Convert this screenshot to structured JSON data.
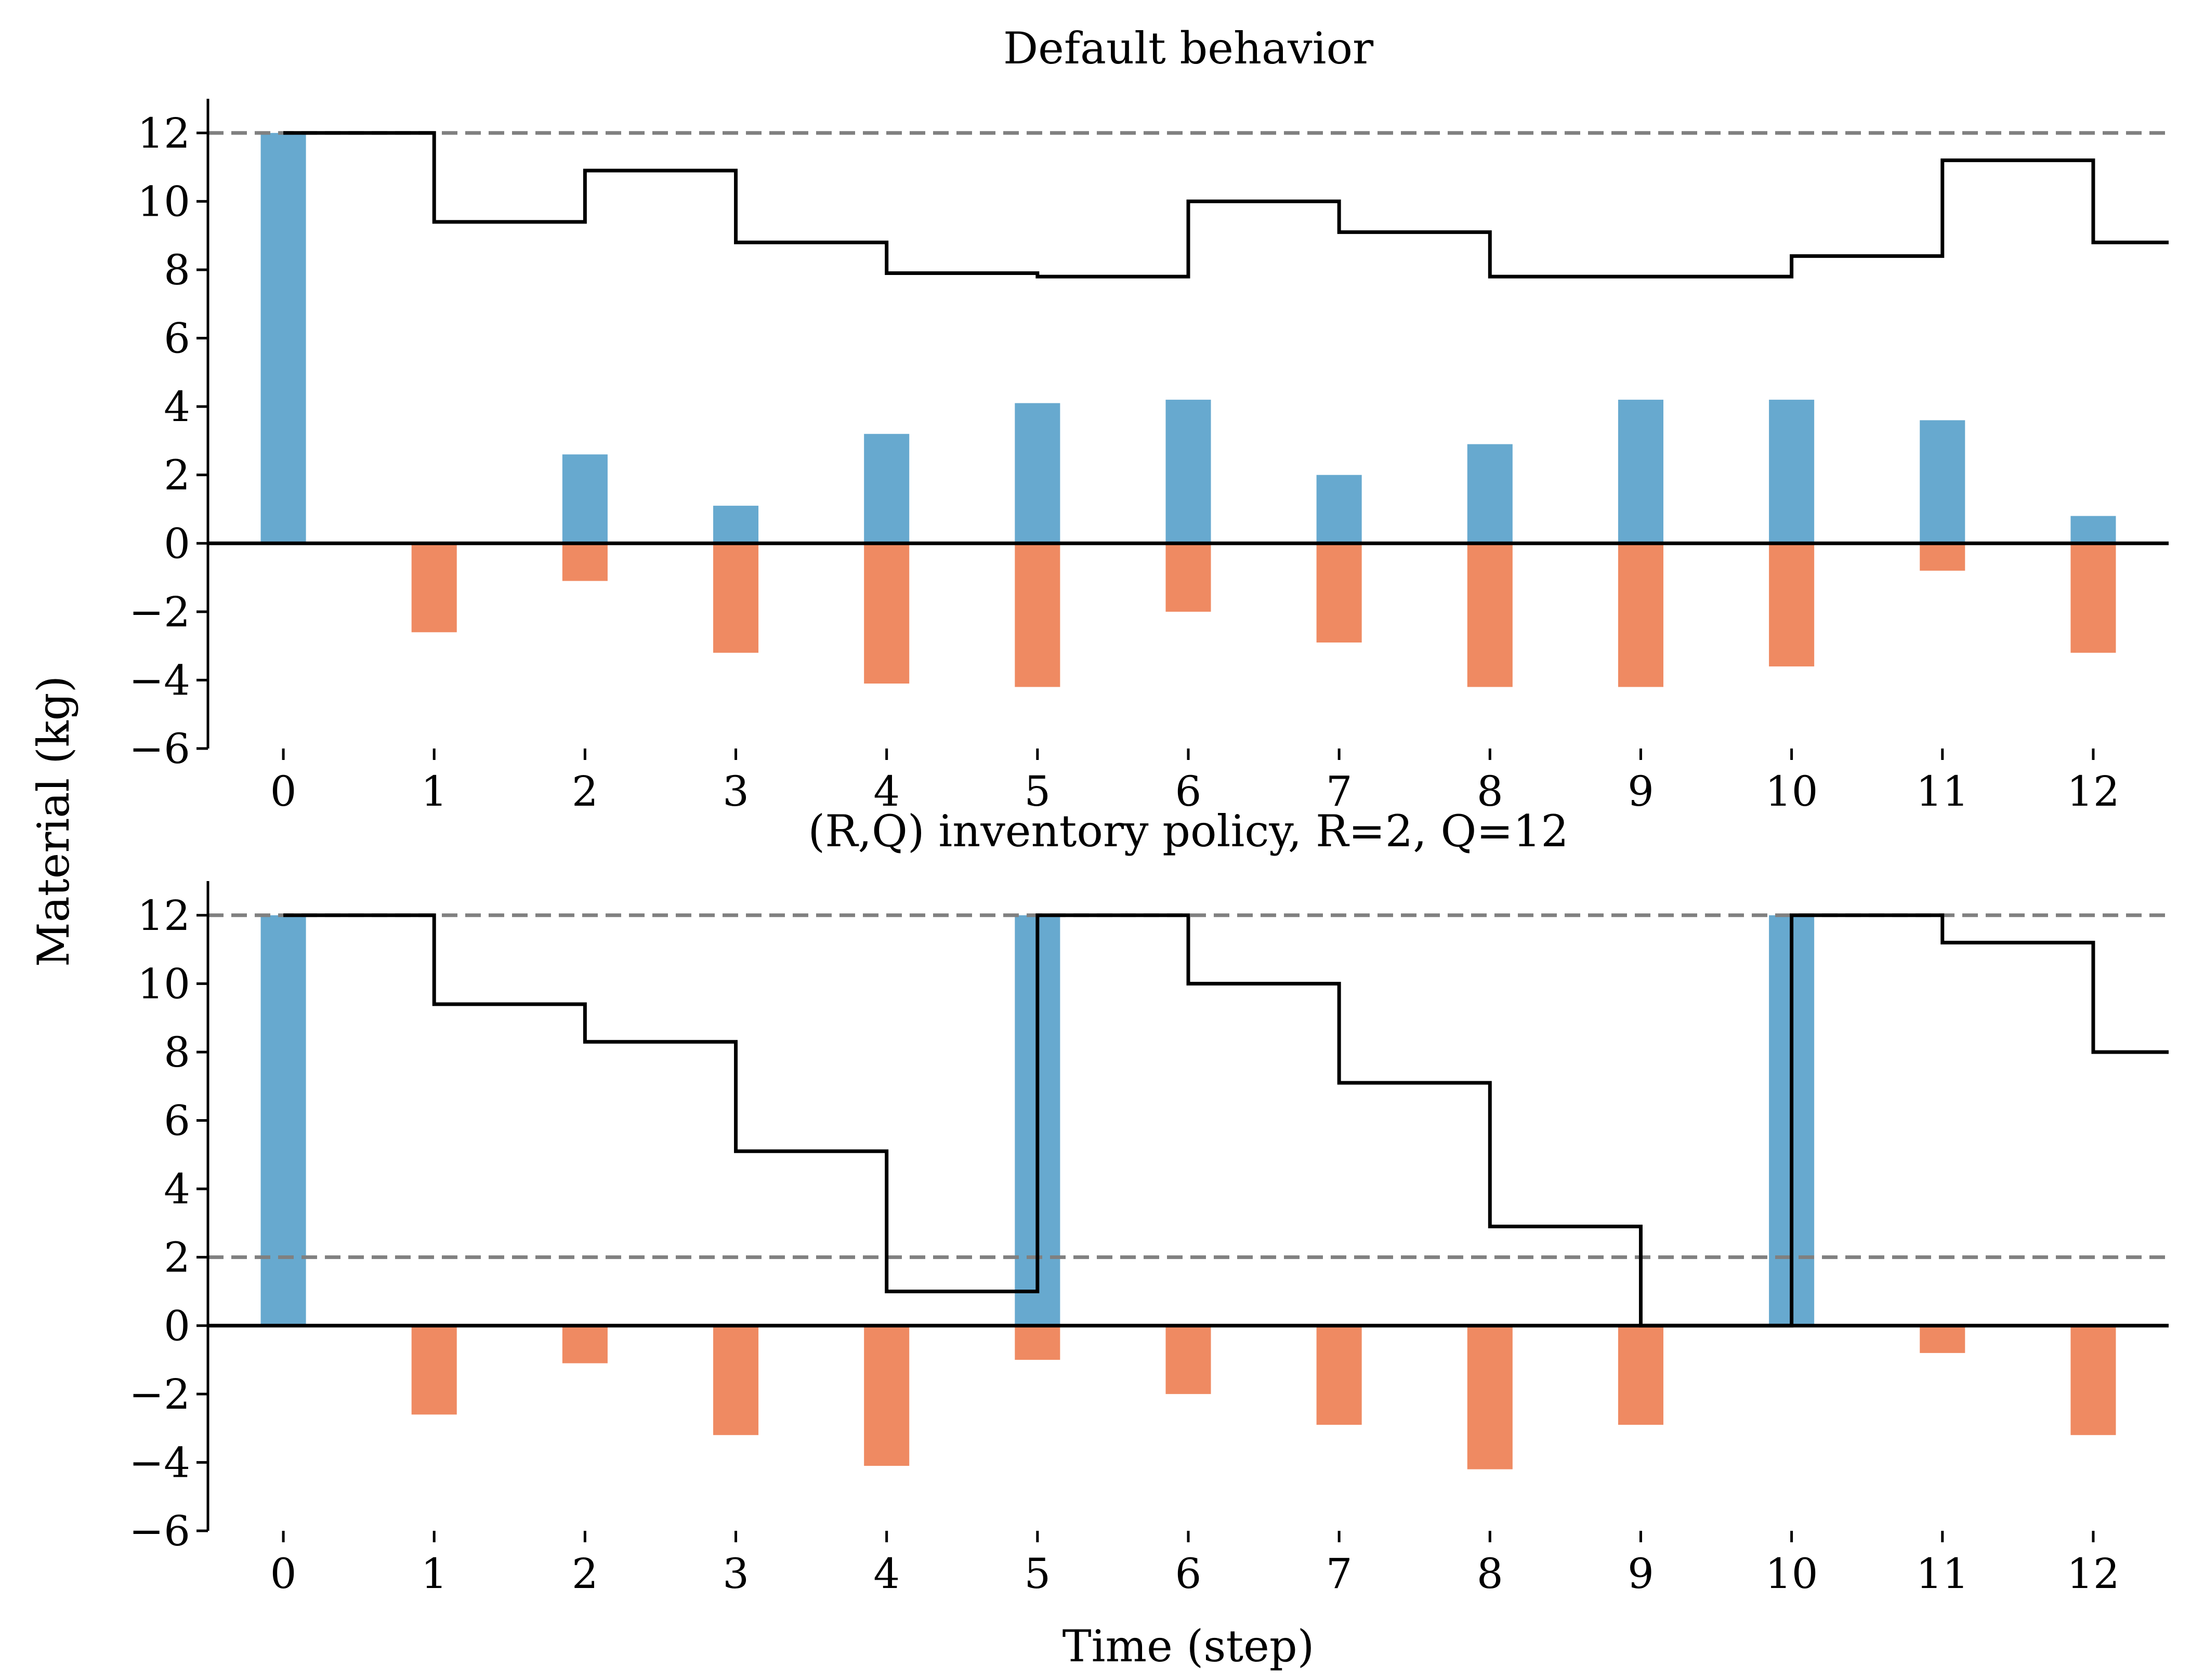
{
  "figure": {
    "ylabel": "Material (kg)",
    "xlabel": "Time (step)"
  },
  "colors": {
    "inflow": "#67a9cf",
    "outflow": "#ef8a62",
    "stock_line": "#000000",
    "reference_line": "#808080",
    "zero_line": "#000000"
  },
  "chart_data": [
    {
      "type": "bar",
      "title": "Default behavior",
      "x": [
        0,
        1,
        2,
        3,
        4,
        5,
        6,
        7,
        8,
        9,
        10,
        11,
        12
      ],
      "xlim": [
        -0.5,
        12.5
      ],
      "ylim": [
        -6,
        13
      ],
      "xticks": [
        0,
        1,
        2,
        3,
        4,
        5,
        6,
        7,
        8,
        9,
        10,
        11,
        12
      ],
      "yticks": [
        -6,
        -4,
        -2,
        0,
        2,
        4,
        6,
        8,
        10,
        12
      ],
      "grid": false,
      "series": [
        {
          "kind": "bar",
          "color_key": "inflow",
          "values": [
            12,
            0,
            2.6,
            1.1,
            3.2,
            4.1,
            4.2,
            2.0,
            2.9,
            4.2,
            4.2,
            3.6,
            0.8
          ]
        },
        {
          "kind": "bar",
          "color_key": "outflow",
          "values": [
            0,
            -2.6,
            -1.1,
            -3.2,
            -4.1,
            -4.2,
            -2.0,
            -2.9,
            -4.2,
            -4.2,
            -3.6,
            -0.8,
            -3.2
          ]
        },
        {
          "kind": "step",
          "color_key": "stock_line",
          "values": [
            12,
            9.4,
            10.9,
            8.8,
            7.9,
            7.8,
            10.0,
            9.1,
            7.8,
            7.8,
            8.4,
            11.2,
            8.8
          ]
        }
      ],
      "reference_lines": [
        12
      ]
    },
    {
      "type": "bar",
      "title": "(R,Q) inventory policy, R=2, Q=12",
      "x": [
        0,
        1,
        2,
        3,
        4,
        5,
        6,
        7,
        8,
        9,
        10,
        11,
        12
      ],
      "xlim": [
        -0.5,
        12.5
      ],
      "ylim": [
        -6,
        13
      ],
      "xticks": [
        0,
        1,
        2,
        3,
        4,
        5,
        6,
        7,
        8,
        9,
        10,
        11,
        12
      ],
      "yticks": [
        -6,
        -4,
        -2,
        0,
        2,
        4,
        6,
        8,
        10,
        12
      ],
      "grid": false,
      "series": [
        {
          "kind": "bar",
          "color_key": "inflow",
          "values": [
            12,
            0,
            0,
            0,
            0,
            12,
            0,
            0,
            0,
            0,
            12,
            0,
            0
          ]
        },
        {
          "kind": "bar",
          "color_key": "outflow",
          "values": [
            0,
            -2.6,
            -1.1,
            -3.2,
            -4.1,
            -1.0,
            -2.0,
            -2.9,
            -4.2,
            -2.9,
            0,
            -0.8,
            -3.2
          ]
        },
        {
          "kind": "step",
          "color_key": "stock_line",
          "values": [
            12,
            9.4,
            8.3,
            5.1,
            1.0,
            12,
            10.0,
            7.1,
            2.9,
            0,
            12,
            11.2,
            8.0
          ]
        }
      ],
      "reference_lines": [
        12,
        2
      ]
    }
  ]
}
